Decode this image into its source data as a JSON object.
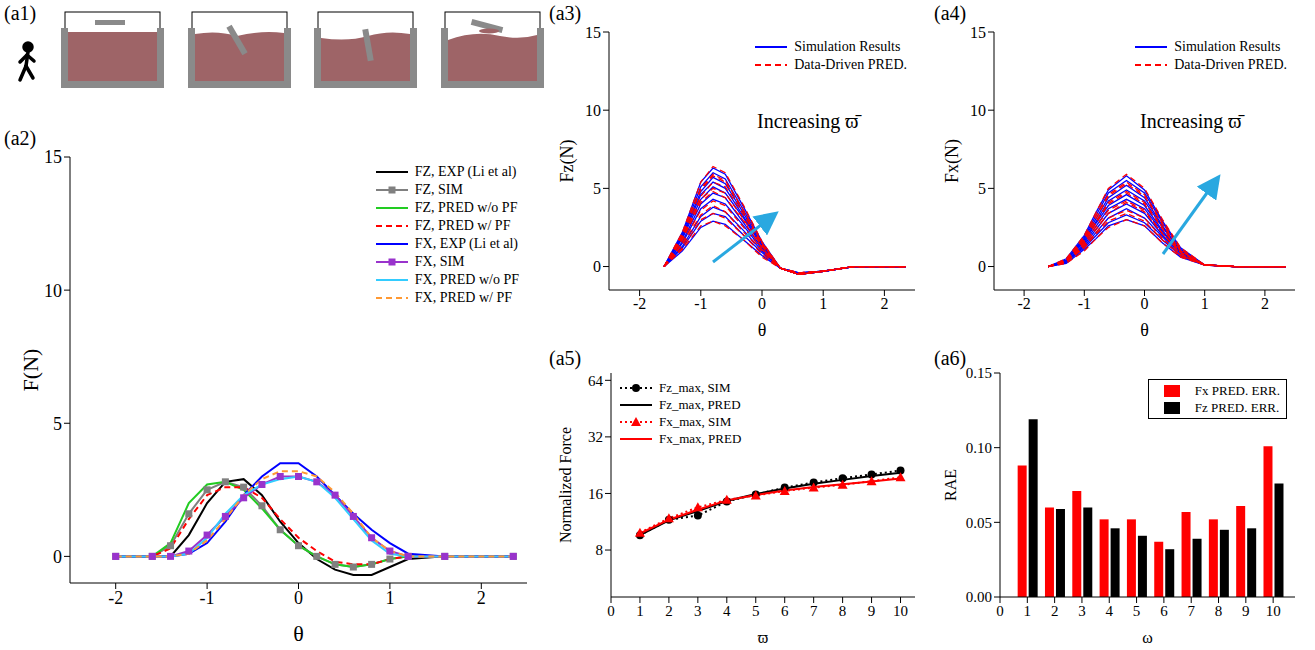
{
  "chart_data": [
    {
      "type": "diagram",
      "title": "(a1)"
    },
    {
      "type": "line",
      "title": "(a2)",
      "x_label": "θ",
      "y_label": "F(N)",
      "x": [
        -2,
        -1.6,
        -1.4,
        -1.2,
        -1.0,
        -0.8,
        -0.6,
        -0.4,
        -0.2,
        0,
        0.2,
        0.4,
        0.6,
        0.8,
        1.0,
        1.2,
        1.6,
        2.35
      ],
      "xlim": [
        -2.5,
        2.5
      ],
      "xticks": [
        -2,
        -1,
        0,
        1,
        2
      ],
      "ylim": [
        -1,
        15
      ],
      "yticks": [
        0,
        5,
        10,
        15
      ],
      "legend": "top right",
      "series": [
        {
          "name": "FZ, EXP (Li et al)",
          "color": "#000000",
          "line_style": "solid",
          "values": [
            0,
            0,
            0,
            0.8,
            2.0,
            2.8,
            2.9,
            2.3,
            1.3,
            0.5,
            -0.1,
            -0.5,
            -0.7,
            -0.7,
            -0.4,
            -0.1,
            0,
            0
          ]
        },
        {
          "name": "FZ, SIM",
          "color": "#808080",
          "line_style": "solid",
          "marker": "square",
          "values": [
            0,
            0,
            0.4,
            1.6,
            2.5,
            2.8,
            2.6,
            1.9,
            1.0,
            0.4,
            0,
            -0.3,
            -0.4,
            -0.3,
            -0.1,
            0,
            0,
            0
          ]
        },
        {
          "name": "FZ, PRED w/o PF",
          "color": "#22cc22",
          "line_style": "solid",
          "values": [
            0,
            0,
            0.5,
            2.0,
            2.7,
            2.8,
            2.5,
            1.8,
            1.0,
            0.4,
            0,
            -0.3,
            -0.4,
            -0.3,
            -0.1,
            0,
            0,
            0
          ]
        },
        {
          "name": "FZ, PRED w/ PF",
          "color": "#ff0000",
          "line_style": "dashed",
          "values": [
            0,
            0,
            0.3,
            1.4,
            2.3,
            2.6,
            2.6,
            2.2,
            1.4,
            0.7,
            0.2,
            -0.2,
            -0.3,
            -0.3,
            -0.1,
            0,
            0,
            0
          ]
        },
        {
          "name": "FX, EXP  (Li et al)",
          "color": "#0000ff",
          "line_style": "solid",
          "values": [
            0,
            0,
            0,
            0.1,
            0.5,
            1.3,
            2.3,
            3.0,
            3.5,
            3.5,
            3.0,
            2.3,
            1.6,
            1.0,
            0.5,
            0.1,
            0,
            0
          ]
        },
        {
          "name": "FX, SIM",
          "color": "#9933cc",
          "line_style": "solid",
          "marker": "square",
          "values": [
            0,
            0,
            0,
            0.2,
            0.8,
            1.5,
            2.2,
            2.7,
            3.0,
            3.0,
            2.8,
            2.3,
            1.5,
            0.7,
            0.2,
            0,
            0,
            0
          ]
        },
        {
          "name": "FX, PRED w/o PF",
          "color": "#33ccff",
          "line_style": "solid",
          "values": [
            0,
            0,
            0,
            0.1,
            0.7,
            1.6,
            2.3,
            2.7,
            2.9,
            3.0,
            2.8,
            2.2,
            1.4,
            0.6,
            0.1,
            0,
            0,
            0
          ]
        },
        {
          "name": "FX, PRED w/ PF",
          "color": "#ff9933",
          "line_style": "dashed",
          "values": [
            0,
            0,
            0,
            0.1,
            0.6,
            1.4,
            2.3,
            2.9,
            3.2,
            3.2,
            3.0,
            2.4,
            1.6,
            0.7,
            0.2,
            0,
            0,
            0
          ]
        }
      ]
    },
    {
      "type": "line",
      "title": "(a3)",
      "x_label": "θ",
      "y_label": "Fz(N)",
      "x": [
        -1.6,
        -1.3,
        -1.0,
        -0.8,
        -0.6,
        -0.3,
        0,
        0.3,
        0.6,
        1.0,
        1.5,
        2.35
      ],
      "xlim": [
        -2.5,
        2.5
      ],
      "xticks": [
        -2,
        -1,
        0,
        1,
        2
      ],
      "ylim": [
        -1.5,
        15
      ],
      "yticks": [
        0,
        5,
        10,
        15
      ],
      "legend": "top right",
      "annotations": [
        {
          "text": "Increasing ϖ̄"
        }
      ],
      "series": [
        {
          "name": "Simulation Results",
          "color": "#0000ff",
          "line_style": "solid",
          "curves": [
            [
              0,
              1.0,
              2.5,
              2.9,
              2.7,
              1.7,
              0.7,
              -0.1,
              -0.4,
              -0.3,
              0,
              0
            ],
            [
              0,
              1.2,
              2.9,
              3.4,
              3.2,
              2.0,
              0.9,
              -0.1,
              -0.4,
              -0.3,
              0,
              0
            ],
            [
              0,
              1.3,
              3.2,
              3.8,
              3.5,
              2.3,
              1.0,
              -0.1,
              -0.4,
              -0.3,
              0,
              0
            ],
            [
              0,
              1.5,
              3.7,
              4.3,
              4.0,
              2.6,
              1.1,
              -0.1,
              -0.5,
              -0.3,
              0,
              0
            ],
            [
              0,
              1.6,
              4.0,
              4.7,
              4.4,
              2.8,
              1.2,
              -0.1,
              -0.5,
              -0.3,
              0,
              0
            ],
            [
              0,
              1.8,
              4.3,
              5.1,
              4.7,
              3.1,
              1.3,
              -0.1,
              -0.5,
              -0.3,
              0,
              0
            ],
            [
              0,
              1.9,
              4.6,
              5.4,
              5.0,
              3.2,
              1.4,
              -0.1,
              -0.5,
              -0.3,
              0,
              0
            ],
            [
              0,
              2.0,
              4.8,
              5.7,
              5.3,
              3.4,
              1.4,
              -0.1,
              -0.5,
              -0.3,
              0,
              0
            ],
            [
              0,
              2.1,
              5.1,
              6.0,
              5.6,
              3.6,
              1.5,
              -0.1,
              -0.5,
              -0.3,
              0,
              0
            ],
            [
              0,
              2.2,
              5.4,
              6.3,
              5.9,
              3.8,
              1.6,
              -0.1,
              -0.5,
              -0.3,
              0,
              0
            ]
          ]
        },
        {
          "name": "Data-Driven PRED.",
          "color": "#ff0000",
          "line_style": "dashed",
          "curves": [
            [
              0,
              1.1,
              2.6,
              2.9,
              2.6,
              1.7,
              0.6,
              -0.1,
              -0.4,
              -0.3,
              0,
              0
            ],
            [
              0,
              1.2,
              3.0,
              3.4,
              3.1,
              2.0,
              0.8,
              -0.1,
              -0.4,
              -0.3,
              0,
              0
            ],
            [
              0,
              1.4,
              3.3,
              3.9,
              3.5,
              2.2,
              1.0,
              -0.1,
              -0.4,
              -0.3,
              0,
              0
            ],
            [
              0,
              1.5,
              3.6,
              4.2,
              3.9,
              2.5,
              1.1,
              -0.1,
              -0.5,
              -0.3,
              0,
              0
            ],
            [
              0,
              1.7,
              4.1,
              4.8,
              4.4,
              2.9,
              1.2,
              -0.1,
              -0.5,
              -0.3,
              0,
              0
            ],
            [
              0,
              1.8,
              4.3,
              5.0,
              4.7,
              3.0,
              1.3,
              -0.1,
              -0.5,
              -0.3,
              0,
              0
            ],
            [
              0,
              1.9,
              4.5,
              5.4,
              5.1,
              3.3,
              1.4,
              -0.1,
              -0.5,
              -0.3,
              0,
              0
            ],
            [
              0,
              2.0,
              4.9,
              5.8,
              5.4,
              3.5,
              1.5,
              -0.1,
              -0.5,
              -0.3,
              0,
              0
            ],
            [
              0,
              2.1,
              5.0,
              5.9,
              5.5,
              3.6,
              1.5,
              -0.1,
              -0.5,
              -0.3,
              0,
              0
            ],
            [
              0,
              2.2,
              5.4,
              6.4,
              6.0,
              3.9,
              1.6,
              -0.1,
              -0.5,
              -0.3,
              0,
              0
            ]
          ]
        }
      ]
    },
    {
      "type": "line",
      "title": "(a4)",
      "x_label": "θ",
      "y_label": "Fx(N)",
      "x": [
        -1.6,
        -1.3,
        -1.0,
        -0.8,
        -0.6,
        -0.3,
        0,
        0.3,
        0.6,
        1.0,
        1.5,
        2.35
      ],
      "xlim": [
        -2.5,
        2.5
      ],
      "xticks": [
        -2,
        -1,
        0,
        1,
        2
      ],
      "ylim": [
        -1.5,
        15
      ],
      "yticks": [
        0,
        5,
        10,
        15
      ],
      "legend": "top right",
      "annotations": [
        {
          "text": "Increasing ϖ̄"
        }
      ],
      "series": [
        {
          "name": "Simulation Results",
          "color": "#0000ff",
          "line_style": "solid",
          "curves": [
            [
              0,
              0.2,
              1.1,
              1.8,
              2.6,
              3.0,
              2.6,
              1.5,
              0.6,
              0.1,
              0,
              0
            ],
            [
              0,
              0.3,
              1.2,
              2.0,
              2.8,
              3.3,
              2.8,
              1.7,
              0.7,
              0.1,
              0,
              0
            ],
            [
              0,
              0.3,
              1.3,
              2.2,
              3.1,
              3.7,
              3.1,
              1.9,
              0.7,
              0.1,
              0,
              0
            ],
            [
              0,
              0.3,
              1.4,
              2.4,
              3.4,
              4.0,
              3.4,
              2.0,
              0.8,
              0.1,
              0,
              0
            ],
            [
              0,
              0.3,
              1.5,
              2.6,
              3.7,
              4.3,
              3.7,
              2.2,
              0.9,
              0.1,
              0,
              0
            ],
            [
              0,
              0.4,
              1.6,
              2.8,
              3.9,
              4.6,
              3.9,
              2.3,
              0.9,
              0.1,
              0,
              0
            ],
            [
              0,
              0.4,
              1.7,
              2.9,
              4.2,
              4.9,
              4.2,
              2.5,
              1.0,
              0.1,
              0,
              0
            ],
            [
              0,
              0.4,
              1.8,
              3.1,
              4.4,
              5.2,
              4.4,
              2.6,
              1.0,
              0.1,
              0,
              0
            ],
            [
              0,
              0.4,
              1.9,
              3.3,
              4.7,
              5.5,
              4.7,
              2.8,
              1.1,
              0.1,
              0,
              0
            ],
            [
              0,
              0.5,
              2.0,
              3.5,
              4.9,
              5.8,
              4.9,
              2.9,
              1.2,
              0.1,
              0,
              0
            ]
          ]
        },
        {
          "name": "Data-Driven PRED.",
          "color": "#ff0000",
          "line_style": "dashed",
          "curves": [
            [
              0,
              0.2,
              1.0,
              1.8,
              2.5,
              3.0,
              2.6,
              1.5,
              0.6,
              0.1,
              0,
              0
            ],
            [
              0,
              0.3,
              1.2,
              2.1,
              2.9,
              3.4,
              2.9,
              1.7,
              0.7,
              0.1,
              0,
              0
            ],
            [
              0,
              0.3,
              1.3,
              2.2,
              3.1,
              3.6,
              3.1,
              1.8,
              0.7,
              0.1,
              0,
              0
            ],
            [
              0,
              0.3,
              1.4,
              2.4,
              3.4,
              4.1,
              3.5,
              2.1,
              0.8,
              0.1,
              0,
              0
            ],
            [
              0,
              0.3,
              1.5,
              2.6,
              3.6,
              4.2,
              3.6,
              2.1,
              0.9,
              0.1,
              0,
              0
            ],
            [
              0,
              0.4,
              1.6,
              2.8,
              4.0,
              4.7,
              4.0,
              2.4,
              0.9,
              0.1,
              0,
              0
            ],
            [
              0,
              0.4,
              1.7,
              2.9,
              4.1,
              4.8,
              4.1,
              2.5,
              1.0,
              0.1,
              0,
              0
            ],
            [
              0,
              0.4,
              1.8,
              3.1,
              4.5,
              5.3,
              4.5,
              2.7,
              1.0,
              0.1,
              0,
              0
            ],
            [
              0,
              0.4,
              1.9,
              3.3,
              4.6,
              5.4,
              4.6,
              2.8,
              1.1,
              0.1,
              0,
              0
            ],
            [
              0,
              0.5,
              2.0,
              3.5,
              5.0,
              5.9,
              5.0,
              3.0,
              1.2,
              0.1,
              0,
              0
            ]
          ]
        }
      ]
    },
    {
      "type": "line",
      "title": "(a5)",
      "x_label": "ϖ",
      "y_label": "Normalized Force",
      "log": "y",
      "x": [
        1,
        2,
        3,
        4,
        5,
        6,
        7,
        8,
        9,
        10
      ],
      "xlim": [
        0,
        10.5
      ],
      "xticks": [
        0,
        1,
        2,
        3,
        4,
        5,
        6,
        7,
        8,
        9,
        10
      ],
      "ylim": [
        4.5,
        70
      ],
      "yticks": [
        8,
        16,
        32,
        64
      ],
      "legend": "top left",
      "series": [
        {
          "name": "Fz_max, SIM",
          "color": "#000000",
          "line_style": "dotted",
          "marker": "circle",
          "values": [
            9.6,
            11.6,
            12.2,
            14.5,
            15.8,
            17.2,
            18.3,
            19.3,
            20.2,
            21.2
          ]
        },
        {
          "name": "Fz_max, PRED",
          "color": "#000000",
          "line_style": "solid",
          "values": [
            9.6,
            11.5,
            12.9,
            14.6,
            15.9,
            17.0,
            18.0,
            18.9,
            19.8,
            20.6
          ]
        },
        {
          "name": "Fx_max, SIM",
          "color": "#ff0000",
          "line_style": "dotted",
          "marker": "triangle",
          "values": [
            9.9,
            11.8,
            13.5,
            14.8,
            15.6,
            16.5,
            17.2,
            17.8,
            18.6,
            19.5
          ]
        },
        {
          "name": "Fx_max, PRED",
          "color": "#ff0000",
          "line_style": "solid",
          "values": [
            9.8,
            11.6,
            13.1,
            14.7,
            15.7,
            16.6,
            17.3,
            17.9,
            18.5,
            19.2
          ]
        }
      ]
    },
    {
      "type": "bar",
      "title": "(a6)",
      "x_label": "ω",
      "y_label": "RAE",
      "x": [
        1,
        2,
        3,
        4,
        5,
        6,
        7,
        8,
        9,
        10
      ],
      "xlim": [
        0,
        10.8
      ],
      "xticks": [
        0,
        1,
        2,
        3,
        4,
        5,
        6,
        7,
        8,
        9,
        10
      ],
      "ylim": [
        0,
        0.15
      ],
      "yticks": [
        {
          "value": 0,
          "label": "0.00"
        },
        {
          "value": 0.05,
          "label": "0.05"
        },
        {
          "value": 0.1,
          "label": "0.10"
        },
        {
          "value": 0.15,
          "label": "0.15"
        }
      ],
      "legend": "top right",
      "series": [
        {
          "name": "Fx PRED. ERR.",
          "color": "#ff0000",
          "values": [
            0.088,
            0.06,
            0.071,
            0.052,
            0.052,
            0.037,
            0.057,
            0.052,
            0.061,
            0.101
          ]
        },
        {
          "name": "Fz PRED. ERR.",
          "color": "#000000",
          "values": [
            0.119,
            0.059,
            0.06,
            0.046,
            0.041,
            0.032,
            0.039,
            0.045,
            0.046,
            0.076
          ]
        }
      ]
    }
  ]
}
